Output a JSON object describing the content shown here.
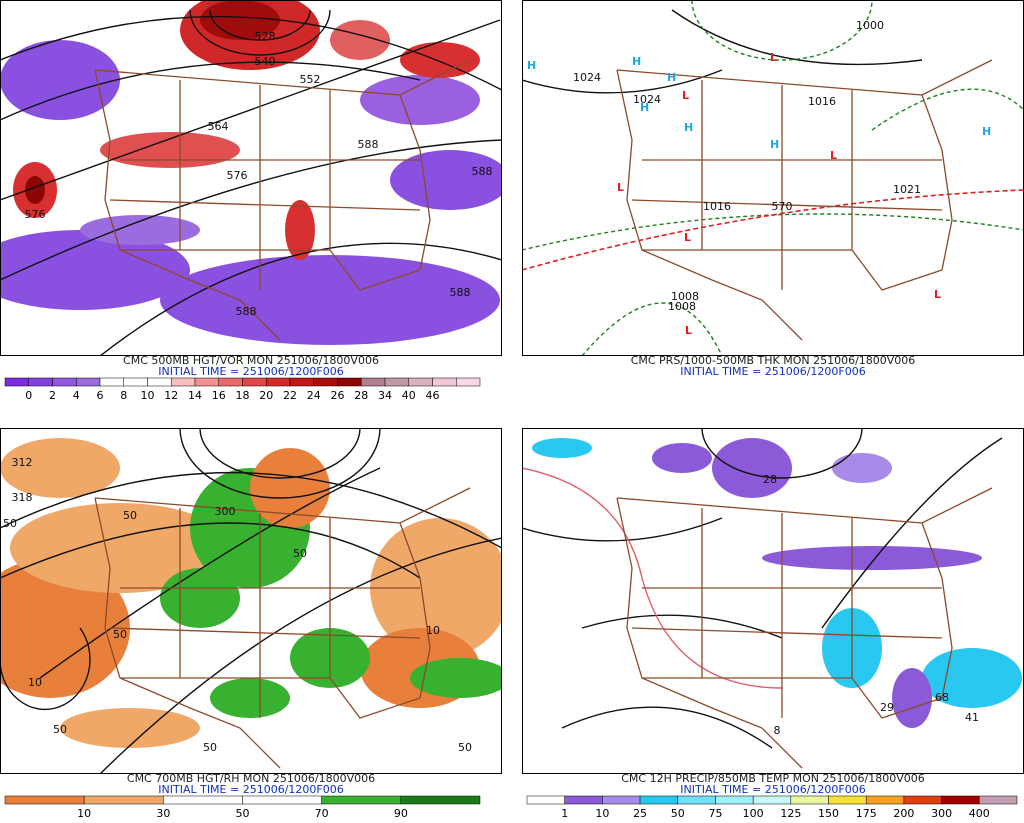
{
  "panels": [
    {
      "caption": "CMC 500MB HGT/VOR MON 251006/1800V006",
      "initial_time": "INITIAL TIME = 251006/1200F006",
      "colorbar": {
        "labels": [
          0,
          2,
          4,
          6,
          8,
          10,
          12,
          14,
          16,
          18,
          20,
          22,
          24,
          26,
          28,
          34,
          40,
          46
        ],
        "colors": [
          "#7a2ee0",
          "#8640e2",
          "#9258e0",
          "#9a6cdc",
          "#ffffff",
          "#ffffff",
          "#ffffff",
          "#f6c0c0",
          "#f09090",
          "#ea6a6a",
          "#e04848",
          "#d42a2a",
          "#c01818",
          "#a80c0c",
          "#8c0606",
          "#b08090",
          "#c098a8",
          "#d8b0c0",
          "#f0c8d8",
          "#f8d8e8"
        ]
      },
      "map_labels": [
        "528",
        "540",
        "552",
        "564",
        "576",
        "576",
        "588",
        "588",
        "588",
        "588"
      ]
    },
    {
      "caption": "CMC PRS/1000-500MB THK MON 251006/1800V006",
      "initial_time": "INITIAL TIME = 251006/1200F006",
      "highs": [
        "H",
        "H",
        "H",
        "H",
        "H",
        "H",
        "H"
      ],
      "lows": [
        "L",
        "L",
        "L",
        "L",
        "L",
        "L",
        "L"
      ],
      "map_labels": [
        "1024",
        "1024",
        "1000",
        "1008",
        "1016",
        "1016",
        "1008",
        "570",
        "1021"
      ]
    },
    {
      "caption": "CMC 700MB HGT/RH MON 251006/1800V006",
      "initial_time": "INITIAL TIME = 251006/1200F006",
      "colorbar": {
        "labels": [
          10,
          30,
          50,
          70,
          90
        ],
        "colors": [
          "#e8803c",
          "#f0a868",
          "#ffffff",
          "#ffffff",
          "#38b030",
          "#1c7a1c"
        ]
      },
      "map_labels": [
        "312",
        "318",
        "50",
        "50",
        "300",
        "50",
        "10",
        "10",
        "50",
        "50",
        "50",
        "50"
      ]
    },
    {
      "caption": "CMC 12H PRECIP/850MB TEMP MON 251006/1800V006",
      "initial_time": "INITIAL TIME = 251006/1200F006",
      "colorbar": {
        "labels": [
          1,
          10,
          25,
          50,
          75,
          100,
          125,
          150,
          175,
          200,
          300,
          400
        ],
        "colors": [
          "#ffffff",
          "#8a5ad8",
          "#a88ae8",
          "#28c8f0",
          "#70e0f8",
          "#a0f0f8",
          "#c8f8f8",
          "#e8f8a0",
          "#f8e030",
          "#f8a020",
          "#e04010",
          "#a00000",
          "#c0a0b0"
        ]
      },
      "map_labels": [
        "28",
        "29",
        "68",
        "8",
        "41"
      ]
    }
  ]
}
